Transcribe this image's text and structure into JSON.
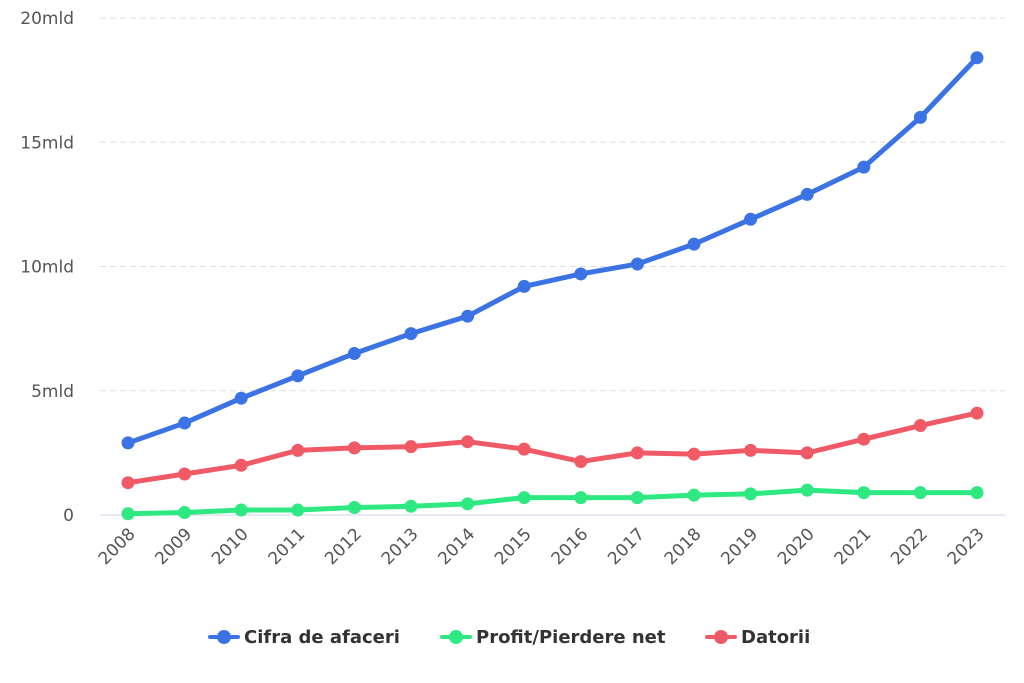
{
  "chart_data": {
    "type": "line",
    "title": "",
    "xlabel": "",
    "ylabel": "",
    "ylim": [
      0,
      20
    ],
    "y_ticks": [
      {
        "value": 0,
        "label": "0"
      },
      {
        "value": 5,
        "label": "5mld"
      },
      {
        "value": 10,
        "label": "10mld"
      },
      {
        "value": 15,
        "label": "15mld"
      },
      {
        "value": 20,
        "label": "20mld"
      }
    ],
    "categories": [
      "2008",
      "2009",
      "2010",
      "2011",
      "2012",
      "2013",
      "2014",
      "2015",
      "2016",
      "2017",
      "2018",
      "2019",
      "2020",
      "2021",
      "2022",
      "2023"
    ],
    "series": [
      {
        "name": "Cifra de afaceri",
        "color": "#3b73e5",
        "values": [
          2.9,
          3.7,
          4.7,
          5.6,
          6.5,
          7.3,
          8.0,
          9.2,
          9.7,
          10.1,
          10.9,
          11.9,
          12.9,
          14.0,
          16.0,
          18.4
        ]
      },
      {
        "name": "Profit/Pierdere net",
        "color": "#2ee882",
        "values": [
          0.05,
          0.1,
          0.2,
          0.2,
          0.3,
          0.35,
          0.45,
          0.7,
          0.7,
          0.7,
          0.8,
          0.85,
          1.0,
          0.9,
          0.9,
          0.9
        ]
      },
      {
        "name": "Datorii",
        "color": "#f05a66",
        "values": [
          1.3,
          1.65,
          2.0,
          2.6,
          2.7,
          2.75,
          2.95,
          2.65,
          2.15,
          2.5,
          2.45,
          2.6,
          2.5,
          3.05,
          3.6,
          4.1
        ]
      }
    ],
    "legend_position": "bottom-center",
    "grid": true
  }
}
